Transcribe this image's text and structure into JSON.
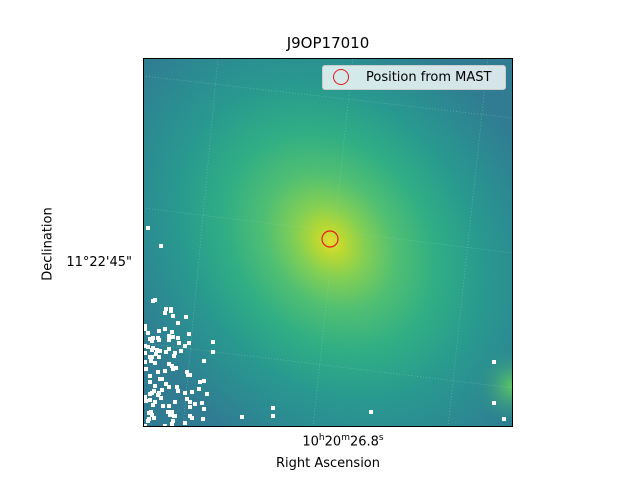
{
  "figure": {
    "title": "J9OP17010",
    "xlabel": "Right Ascension",
    "ylabel": "Declination",
    "ytick_label": "11°22'45\"",
    "xtick": {
      "h": "10",
      "m": "20",
      "s": "26.8",
      "h_unit": "h",
      "m_unit": "m",
      "s_unit": "s"
    },
    "legend": {
      "label": "Position from MAST",
      "marker_color": "#e41a1a"
    },
    "colormap": "viridis",
    "image_description_colors": {
      "background": "#2a8b8d",
      "core": "#d8e21e",
      "bad_pixels": "#ffffff"
    }
  }
}
